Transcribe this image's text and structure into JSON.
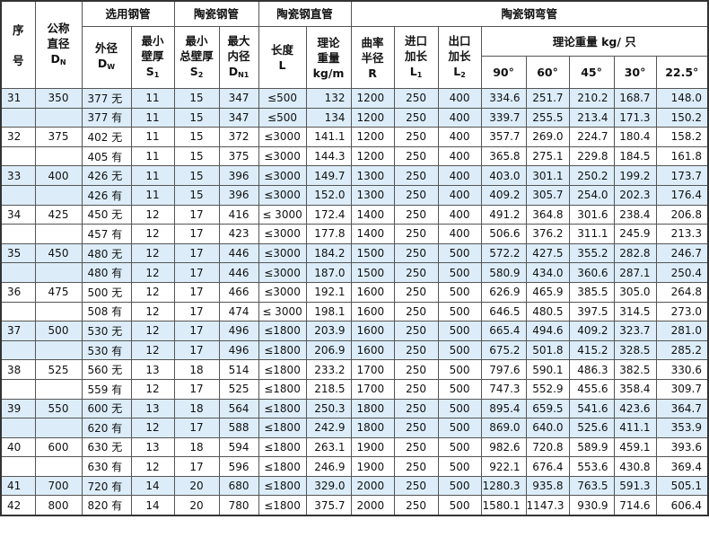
{
  "header": {
    "seq": [
      "序",
      "号"
    ],
    "nominal": [
      "公称",
      "直径",
      "D",
      "N"
    ],
    "steel_pipe": "选用钢管",
    "outer_d": [
      "外径",
      "D",
      "W"
    ],
    "min_wall": [
      "最小",
      "壁厚",
      "S",
      "1"
    ],
    "ceramic_pipe": "陶瓷钢管",
    "min_total_wall": [
      "最小",
      "总壁厚",
      "S",
      "2"
    ],
    "max_inner": [
      "最大",
      "内径",
      "D",
      "N1"
    ],
    "straight_pipe": "陶瓷钢直管",
    "length": [
      "长度",
      "L"
    ],
    "weight_m": [
      "理论",
      "重量",
      "kg/m"
    ],
    "elbow": "陶瓷钢弯管",
    "radius": [
      "曲率",
      "半径",
      "R"
    ],
    "inlet": [
      "进口",
      "加长",
      "L",
      "1"
    ],
    "outlet": [
      "出口",
      "加长",
      "L",
      "2"
    ],
    "weight_each": "理论重量 kg/ 只",
    "angles": [
      "90°",
      "60°",
      "45°",
      "30°",
      "22.5°"
    ]
  },
  "rows": [
    [
      "31",
      "350",
      "377 无",
      "11",
      "15",
      "347",
      "≤500",
      "132",
      "1200",
      "250",
      "400",
      "334.6",
      "251.7",
      "210.2",
      "168.7",
      "148.0"
    ],
    [
      "",
      "",
      "377 有",
      "11",
      "15",
      "347",
      "≤500",
      "134",
      "1200",
      "250",
      "400",
      "339.7",
      "255.5",
      "213.4",
      "171.3",
      "150.2"
    ],
    [
      "32",
      "375",
      "402 无",
      "11",
      "15",
      "372",
      "≤3000",
      "141.1",
      "1200",
      "250",
      "400",
      "357.7",
      "269.0",
      "224.7",
      "180.4",
      "158.2"
    ],
    [
      "",
      "",
      "405 有",
      "11",
      "15",
      "375",
      "≤3000",
      "144.3",
      "1200",
      "250",
      "400",
      "365.8",
      "275.1",
      "229.8",
      "184.5",
      "161.8"
    ],
    [
      "33",
      "400",
      "426 无",
      "11",
      "15",
      "396",
      "≤3000",
      "149.7",
      "1300",
      "250",
      "400",
      "403.0",
      "301.1",
      "250.2",
      "199.2",
      "173.7"
    ],
    [
      "",
      "",
      "426 有",
      "11",
      "15",
      "396",
      "≤3000",
      "152.0",
      "1300",
      "250",
      "400",
      "409.2",
      "305.7",
      "254.0",
      "202.3",
      "176.4"
    ],
    [
      "34",
      "425",
      "450 无",
      "12",
      "17",
      "416",
      "≤ 3000",
      "172.4",
      "1400",
      "250",
      "400",
      "491.2",
      "364.8",
      "301.6",
      "238.4",
      "206.8"
    ],
    [
      "",
      "",
      "457 有",
      "12",
      "17",
      "423",
      "≤3000",
      "177.8",
      "1400",
      "250",
      "400",
      "506.6",
      "376.2",
      "311.1",
      "245.9",
      "213.3"
    ],
    [
      "35",
      "450",
      "480 无",
      "12",
      "17",
      "446",
      "≤3000",
      "184.2",
      "1500",
      "250",
      "500",
      "572.2",
      "427.5",
      "355.2",
      "282.8",
      "246.7"
    ],
    [
      "",
      "",
      "480 有",
      "12",
      "17",
      "446",
      "≤3000",
      "187.0",
      "1500",
      "250",
      "500",
      "580.9",
      "434.0",
      "360.6",
      "287.1",
      "250.4"
    ],
    [
      "36",
      "475",
      "500 无",
      "12",
      "17",
      "466",
      "≤3000",
      "192.1",
      "1600",
      "250",
      "500",
      "626.9",
      "465.9",
      "385.5",
      "305.0",
      "264.8"
    ],
    [
      "",
      "",
      "508 有",
      "12",
      "17",
      "474",
      "≤ 3000",
      "198.1",
      "1600",
      "250",
      "500",
      "646.5",
      "480.5",
      "397.5",
      "314.5",
      "273.0"
    ],
    [
      "37",
      "500",
      "530 无",
      "12",
      "17",
      "496",
      "≤1800",
      "203.9",
      "1600",
      "250",
      "500",
      "665.4",
      "494.6",
      "409.2",
      "323.7",
      "281.0"
    ],
    [
      "",
      "",
      "530 有",
      "12",
      "17",
      "496",
      "≤1800",
      "206.9",
      "1600",
      "250",
      "500",
      "675.2",
      "501.8",
      "415.2",
      "328.5",
      "285.2"
    ],
    [
      "38",
      "525",
      "560 无",
      "13",
      "18",
      "514",
      "≤1800",
      "233.2",
      "1700",
      "250",
      "500",
      "797.6",
      "590.1",
      "486.3",
      "382.5",
      "330.6"
    ],
    [
      "",
      "",
      "559 有",
      "12",
      "17",
      "525",
      "≤1800",
      "218.5",
      "1700",
      "250",
      "500",
      "747.3",
      "552.9",
      "455.6",
      "358.4",
      "309.7"
    ],
    [
      "39",
      "550",
      "600 无",
      "13",
      "18",
      "564",
      "≤1800",
      "250.3",
      "1800",
      "250",
      "500",
      "895.4",
      "659.5",
      "541.6",
      "423.6",
      "364.7"
    ],
    [
      "",
      "",
      "620 有",
      "12",
      "17",
      "588",
      "≤1800",
      "242.9",
      "1800",
      "250",
      "500",
      "869.0",
      "640.0",
      "525.6",
      "411.1",
      "353.9"
    ],
    [
      "40",
      "600",
      "630 无",
      "13",
      "18",
      "594",
      "≤1800",
      "263.1",
      "1900",
      "250",
      "500",
      "982.6",
      "720.8",
      "589.9",
      "459.1",
      "393.6"
    ],
    [
      "",
      "",
      "630 有",
      "12",
      "17",
      "596",
      "≤1800",
      "246.9",
      "1900",
      "250",
      "500",
      "922.1",
      "676.4",
      "553.6",
      "430.8",
      "369.4"
    ],
    [
      "41",
      "700",
      "720 有",
      "14",
      "20",
      "680",
      "≤1800",
      "329.0",
      "2000",
      "250",
      "500",
      "1280.3",
      "935.8",
      "763.5",
      "591.3",
      "505.1"
    ],
    [
      "42",
      "800",
      "820 有",
      "14",
      "20",
      "780",
      "≤1800",
      "375.7",
      "2000",
      "250",
      "500",
      "1580.1",
      "1147.3",
      "930.9",
      "714.6",
      "606.4"
    ]
  ],
  "shaded_rows": [
    0,
    1,
    4,
    5,
    8,
    9,
    12,
    13,
    16,
    17,
    20
  ],
  "colors": {
    "shade": "#dcedf9",
    "border": "#555555"
  }
}
